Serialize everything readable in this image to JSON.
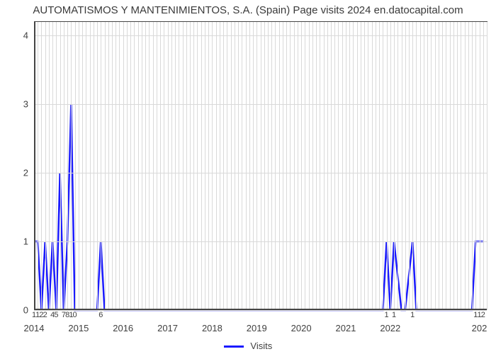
{
  "chart": {
    "type": "line",
    "title": "AUTOMATISMOS Y MANTENIMIENTOS, S.A. (Spain) Page visits 2024 en.datocapital.com",
    "title_fontsize": 15,
    "title_color": "#3a3a3a",
    "background_color": "#ffffff",
    "line_color": "#1a1aff",
    "line_width": 2.5,
    "grid_color": "#d9d9d9",
    "axis_color": "#444444",
    "label_color": "#404040",
    "ylim": [
      0,
      4.2
    ],
    "yticks": [
      0,
      1,
      2,
      3,
      4
    ],
    "ytick_labels": [
      "0",
      "1",
      "2",
      "3",
      "4"
    ],
    "xlim": [
      0,
      122
    ],
    "x_major_ticks": [
      {
        "pos": 0,
        "label": "2014"
      },
      {
        "pos": 12,
        "label": "2015"
      },
      {
        "pos": 24,
        "label": "2016"
      },
      {
        "pos": 36,
        "label": "2017"
      },
      {
        "pos": 48,
        "label": "2018"
      },
      {
        "pos": 60,
        "label": "2019"
      },
      {
        "pos": 72,
        "label": "2020"
      },
      {
        "pos": 84,
        "label": "2021"
      },
      {
        "pos": 96,
        "label": "2022"
      },
      {
        "pos": 108,
        "label": ""
      },
      {
        "pos": 120,
        "label": "202"
      }
    ],
    "x_minor_grid_step": 1,
    "data_points": [
      {
        "x": 0,
        "y": 1,
        "label": "1"
      },
      {
        "x": 1,
        "y": 1,
        "label": "1"
      },
      {
        "x": 2,
        "y": 0,
        "label": "2"
      },
      {
        "x": 3,
        "y": 1,
        "label": "2"
      },
      {
        "x": 4,
        "y": 0,
        "label": ""
      },
      {
        "x": 5,
        "y": 1,
        "label": "4"
      },
      {
        "x": 6,
        "y": 0,
        "label": "5"
      },
      {
        "x": 7,
        "y": 2,
        "label": ""
      },
      {
        "x": 8,
        "y": 0,
        "label": "7"
      },
      {
        "x": 9,
        "y": 1,
        "label": "8"
      },
      {
        "x": 10,
        "y": 3,
        "label": "1"
      },
      {
        "x": 11,
        "y": 0,
        "label": "0"
      },
      {
        "x": 12,
        "y": 0
      },
      {
        "x": 17,
        "y": 0
      },
      {
        "x": 18,
        "y": 1,
        "label": "6"
      },
      {
        "x": 19,
        "y": 0
      },
      {
        "x": 90,
        "y": 0
      },
      {
        "x": 91,
        "y": 0
      },
      {
        "x": 92,
        "y": 0
      },
      {
        "x": 94,
        "y": 0
      },
      {
        "x": 95,
        "y": 1,
        "label": "1"
      },
      {
        "x": 96,
        "y": 0
      },
      {
        "x": 97,
        "y": 1,
        "label": "1"
      },
      {
        "x": 99,
        "y": 0
      },
      {
        "x": 100,
        "y": 0
      },
      {
        "x": 102,
        "y": 1,
        "label": "1"
      },
      {
        "x": 103,
        "y": 0
      },
      {
        "x": 118,
        "y": 0
      },
      {
        "x": 119,
        "y": 1,
        "label": "1"
      },
      {
        "x": 120,
        "y": 1,
        "label": "1"
      },
      {
        "x": 121,
        "y": 1,
        "label": "2"
      }
    ],
    "legend_label": "Visits",
    "legend_fontsize": 13
  }
}
